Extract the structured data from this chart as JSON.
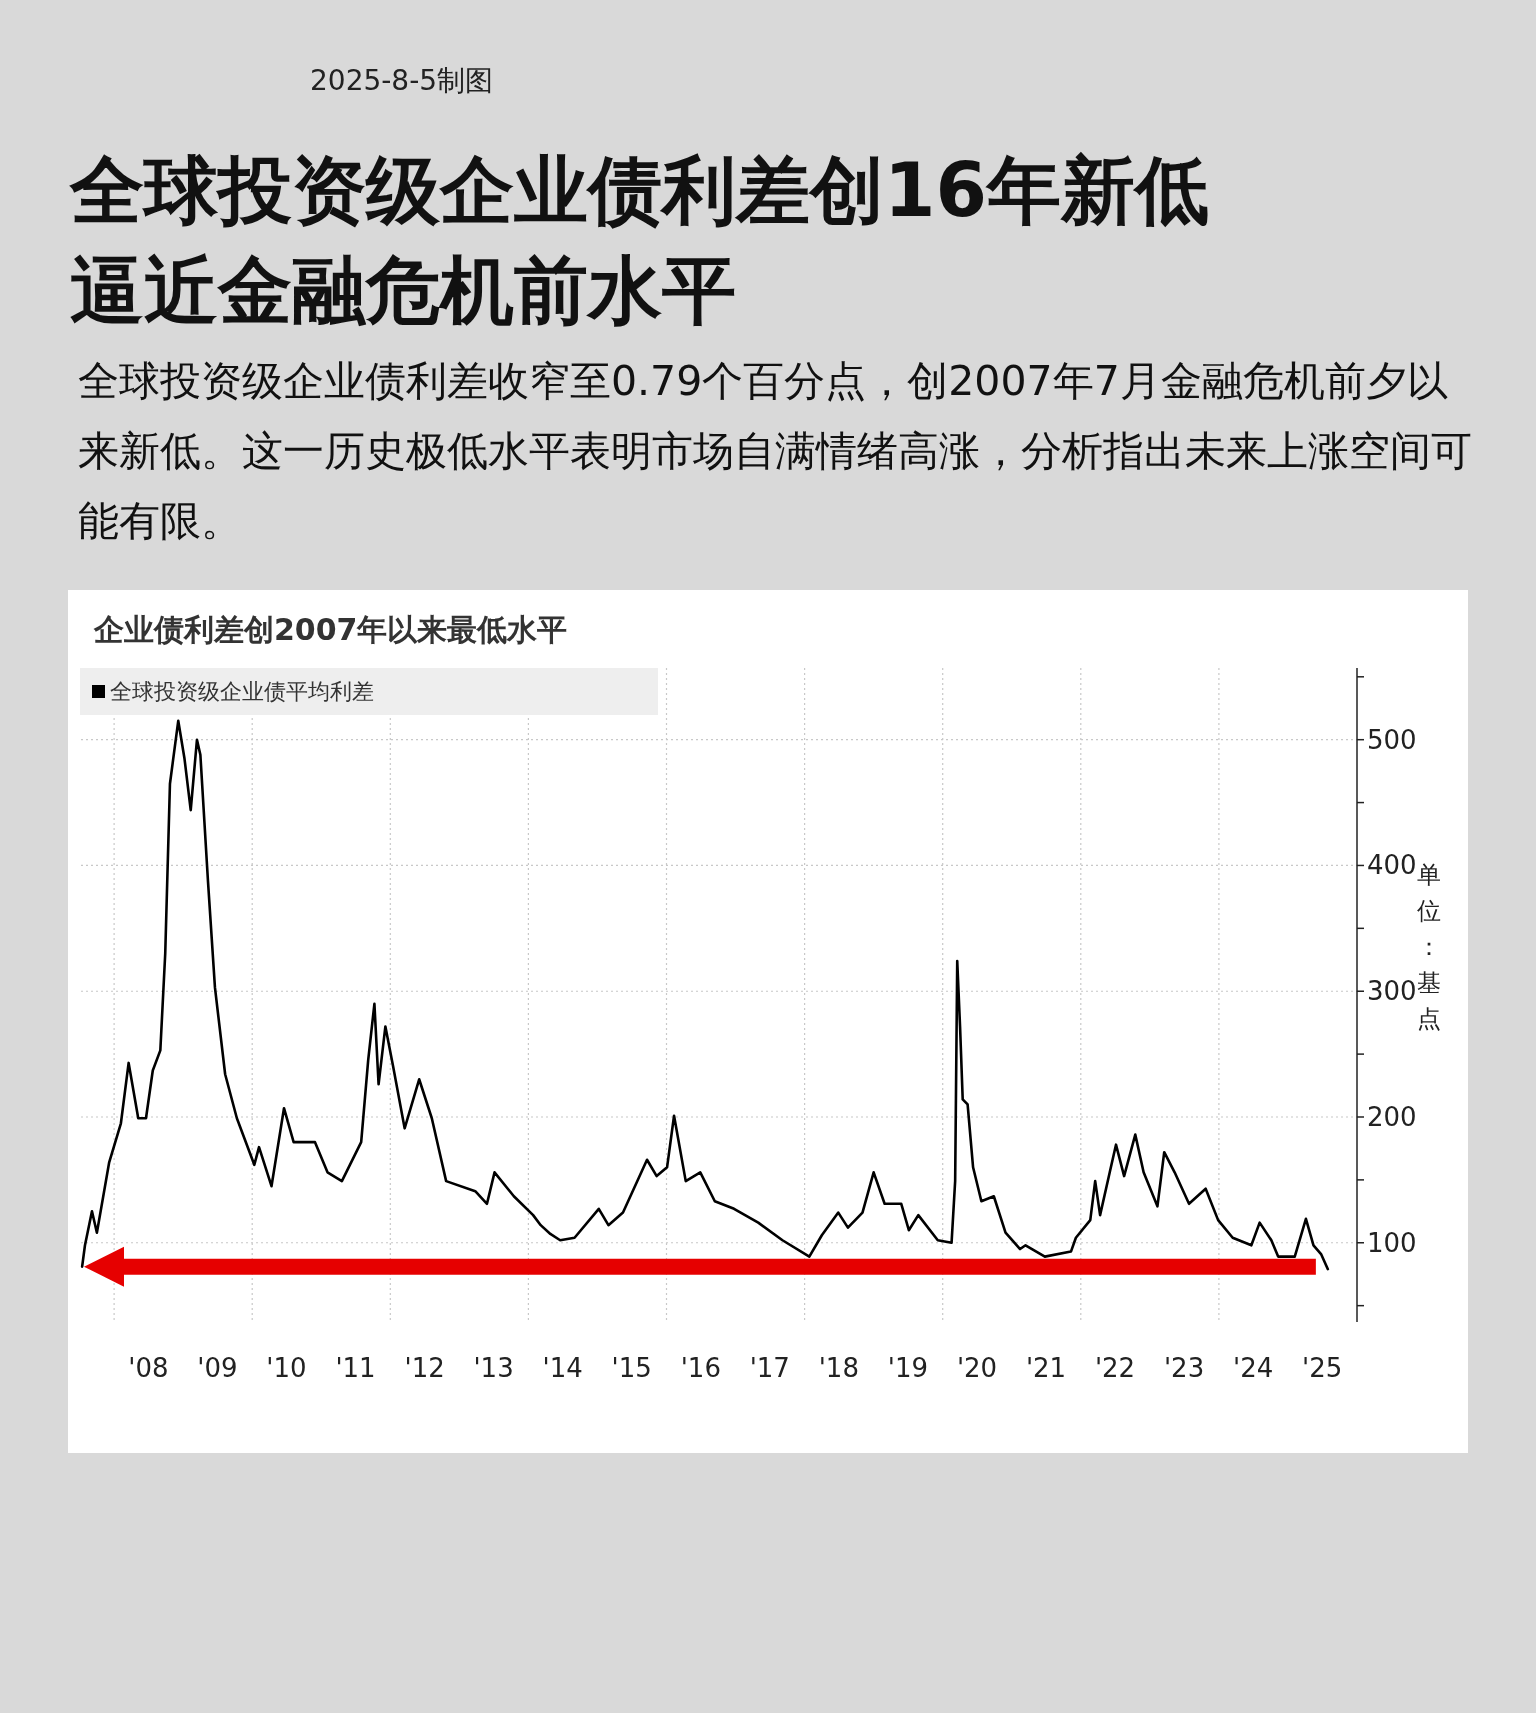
{
  "chart_data": {
    "type": "line",
    "title": "全球投资级企业债利差创16年新低逼近金融危机前水平",
    "subtitle": "全球投资级企业债利差收窄至0.79个百分点，创2007年7月金融危机前夕以来新低。这一历史极低水平表明市场自满情绪高涨，分析指出未来上涨空间可能有限。",
    "annotations": [
      "2025-8-5制图",
      "企业债利差创2007年以来最低水平"
    ],
    "ylabel": "单位：基点",
    "legend": "top left",
    "grid": true,
    "xlim": [
      "2007-07-10",
      "2026"
    ],
    "xticks": [
      {
        "value": "2008",
        "label": null
      },
      {
        "value": "2010",
        "label": null
      },
      {
        "value": "2012",
        "label": null
      },
      {
        "value": "2014",
        "label": null
      },
      {
        "value": "2016",
        "label": null
      },
      {
        "value": "2018",
        "label": null
      },
      {
        "value": "2020",
        "label": null
      },
      {
        "value": "2022",
        "label": null
      },
      {
        "value": "2024",
        "label": null
      },
      {
        "value": "2008-07-01",
        "label": "'08"
      },
      {
        "value": "2009-07-01",
        "label": "'09"
      },
      {
        "value": "2010-07-01",
        "label": "'10"
      },
      {
        "value": "2011-07-01",
        "label": "'11"
      },
      {
        "value": "2012-07-01",
        "label": "'12"
      },
      {
        "value": "2013-07-01",
        "label": "'13"
      },
      {
        "value": "2014-07-01",
        "label": "'14"
      },
      {
        "value": "2015-07-01",
        "label": "'15"
      },
      {
        "value": "2016-07-01",
        "label": "'16"
      },
      {
        "value": "2017-07-01",
        "label": "'17"
      },
      {
        "value": "2018-07-01",
        "label": "'18"
      },
      {
        "value": "2019-07-01",
        "label": "'19"
      },
      {
        "value": "2020-07-01",
        "label": "'20"
      },
      {
        "value": "2021-07-01",
        "label": "'21"
      },
      {
        "value": "2022-07-01",
        "label": "'22"
      },
      {
        "value": "2023-07-01",
        "label": "'23"
      },
      {
        "value": "2024-07-01",
        "label": "'24"
      },
      {
        "value": "2025-07-01",
        "label": "'25"
      }
    ],
    "ylim": [
      37,
      557
    ],
    "yticks": [
      {
        "value": 50,
        "label": null
      },
      100,
      {
        "value": 150,
        "label": null
      },
      200,
      {
        "value": 250,
        "label": null
      },
      300,
      {
        "value": 350,
        "label": null
      },
      400,
      {
        "value": 450,
        "label": null
      },
      500,
      {
        "value": 550,
        "label": null
      }
    ],
    "ref_lines": [
      {
        "axis": "y",
        "value": 81,
        "color": "#e60000"
      }
    ],
    "series": [
      {
        "name": "全球投资级企业债平均利差",
        "color": "#000000",
        "x": [
          "2007-07-16",
          "2007-07-31",
          "2007-09-06",
          "2007-10-02",
          "2007-12-06",
          "2008-02-06",
          "2008-03-18",
          "2008-05-08",
          "2008-06-18",
          "2008-07-24",
          "2008-09-02",
          "2008-09-28",
          "2008-10-23",
          "2008-12-06",
          "2009-01-08",
          "2009-02-10",
          "2009-03-15",
          "2009-04-02",
          "2009-05-12",
          "2009-06-18",
          "2009-08-11",
          "2009-10-12",
          "2010-01-12",
          "2010-02-06",
          "2010-04-13",
          "2010-06-18",
          "2010-08-08",
          "2010-11-29",
          "2011-02-03",
          "2011-04-20",
          "2011-07-31",
          "2011-09-06",
          "2011-10-09",
          "2011-10-31",
          "2011-12-06",
          "2012-01-15",
          "2012-03-17",
          "2012-06-02",
          "2012-08-08",
          "2012-10-23",
          "2013-03-26",
          "2013-05-27",
          "2013-07-06",
          "2013-10-16",
          "2014-01-26",
          "2014-03-07",
          "2014-04-27",
          "2014-06-18",
          "2014-09-02",
          "2015-01-08",
          "2015-02-28",
          "2015-05-16",
          "2015-09-20",
          "2015-11-10",
          "2016-01-04",
          "2016-02-10",
          "2016-04-12",
          "2016-06-28",
          "2016-09-13",
          "2016-12-24",
          "2017-05-01",
          "2017-09-06",
          "2018-01-26",
          "2018-04-02",
          "2018-06-28",
          "2018-08-18",
          "2018-11-03",
          "2019-01-01",
          "2019-02-28",
          "2019-05-27",
          "2019-07-06",
          "2019-08-25",
          "2019-12-06",
          "2020-02-17",
          "2020-03-07",
          "2020-03-18",
          "2020-04-02",
          "2020-04-16",
          "2020-05-12",
          "2020-06-10",
          "2020-07-24",
          "2020-09-28",
          "2020-11-29",
          "2021-02-14",
          "2021-03-15",
          "2021-06-25",
          "2021-11-10",
          "2021-12-06",
          "2022-02-20",
          "2022-03-18",
          "2022-04-13",
          "2022-06-03",
          "2022-07-06",
          "2022-08-18",
          "2022-10-16",
          "2022-11-29",
          "2023-02-10",
          "2023-03-18",
          "2023-05-12",
          "2023-07-27",
          "2023-10-23",
          "2023-12-28",
          "2024-03-14",
          "2024-06-21",
          "2024-08-04",
          "2024-10-05",
          "2024-11-10",
          "2025-02-06",
          "2025-04-06",
          "2025-05-16",
          "2025-06-25",
          "2025-07-31"
        ],
        "values": [
          81,
          98,
          125,
          108,
          164,
          195,
          243,
          199,
          199,
          237,
          253,
          330,
          465,
          515,
          485,
          444,
          500,
          488,
          388,
          303,
          234,
          199,
          162,
          176,
          145,
          207,
          180,
          180,
          156,
          149,
          180,
          245,
          290,
          226,
          272,
          241,
          191,
          230,
          199,
          149,
          141,
          131,
          156,
          137,
          122,
          114,
          107,
          102,
          104,
          127,
          114,
          124,
          166,
          153,
          160,
          201,
          149,
          156,
          133,
          127,
          116,
          102,
          89,
          106,
          124,
          112,
          124,
          156,
          131,
          131,
          110,
          122,
          102,
          100,
          149,
          324,
          272,
          214,
          210,
          160,
          133,
          137,
          108,
          95,
          98,
          89,
          93,
          104,
          118,
          149,
          122,
          156,
          178,
          153,
          186,
          156,
          129,
          172,
          156,
          131,
          143,
          118,
          104,
          98,
          116,
          102,
          89,
          89,
          119,
          98,
          91,
          79
        ]
      }
    ]
  }
}
